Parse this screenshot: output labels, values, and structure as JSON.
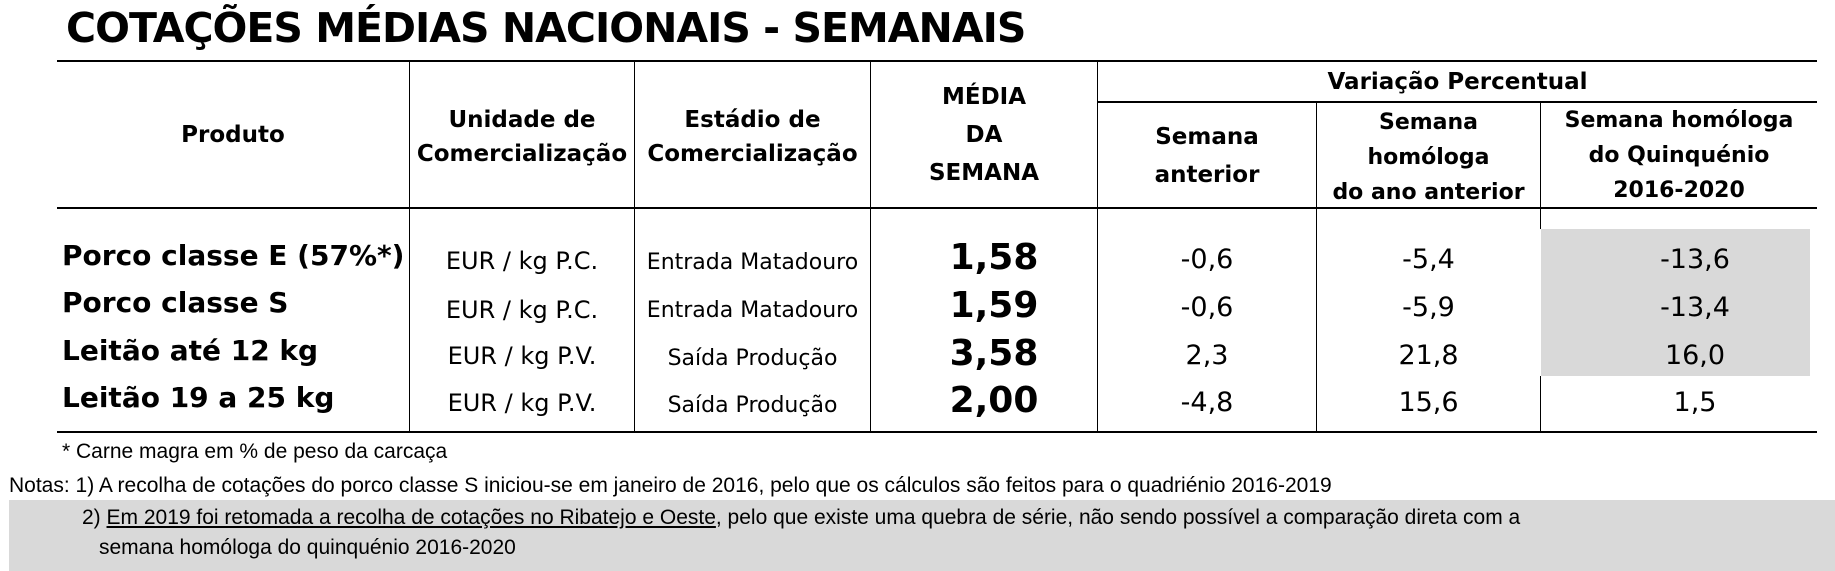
{
  "title": "COTAÇÕES MÉDIAS NACIONAIS - SEMANAIS",
  "headers": {
    "produto": "Produto",
    "unidade": [
      "Unidade de",
      "Comercialização"
    ],
    "estadio": [
      "Estádio de",
      "Comercialização"
    ],
    "media": [
      "MÉDIA",
      "DA",
      "SEMANA"
    ],
    "variacao": "Variação Percentual",
    "semana_anterior": [
      "Semana",
      "anterior"
    ],
    "semana_homologa": [
      "Semana",
      "homóloga",
      "do ano anterior"
    ],
    "semana_quinquenio": [
      "Semana homóloga",
      "do Quinquénio",
      "2016-2020"
    ]
  },
  "rows": [
    {
      "produto": "Porco classe E (57%*)",
      "unidade": "EUR / kg P.C.",
      "estadio": "Entrada Matadouro",
      "media": "1,58",
      "anterior": "-0,6",
      "homologa": "-5,4",
      "quinquenio": "-13,6",
      "shaded": true
    },
    {
      "produto": "Porco classe S",
      "unidade": "EUR / kg P.C.",
      "estadio": "Entrada Matadouro",
      "media": "1,59",
      "anterior": "-0,6",
      "homologa": "-5,9",
      "quinquenio": "-13,4",
      "shaded": true
    },
    {
      "produto": "Leitão até 12 kg",
      "unidade": "EUR / kg P.V.",
      "estadio": "Saída Produção",
      "media": "3,58",
      "anterior": "2,3",
      "homologa": "21,8",
      "quinquenio": "16,0",
      "shaded": true
    },
    {
      "produto": "Leitão 19 a 25 kg",
      "unidade": "EUR / kg P.V.",
      "estadio": "Saída Produção",
      "media": "2,00",
      "anterior": "-4,8",
      "homologa": "15,6",
      "quinquenio": "1,5",
      "shaded": false
    }
  ],
  "footnote": "* Carne magra em % de peso da carcaça",
  "notes": {
    "note1": "Notas: 1) A recolha de cotações do porco classe S iniciou-se em janeiro de 2016, pelo que os cálculos são feitos para o quadriénio 2016-2019",
    "note2_prefix": "2) ",
    "note2_underlined": "Em 2019 foi retomada a recolha de cotações no Ribatejo e Oeste",
    "note2_rest": ", pelo que existe uma quebra de série, não sendo possível a comparação direta com a",
    "note2_line2": "semana homóloga do quinquénio 2016-2020"
  },
  "colors": {
    "shade": "#d9d9d9",
    "text": "#000000"
  }
}
